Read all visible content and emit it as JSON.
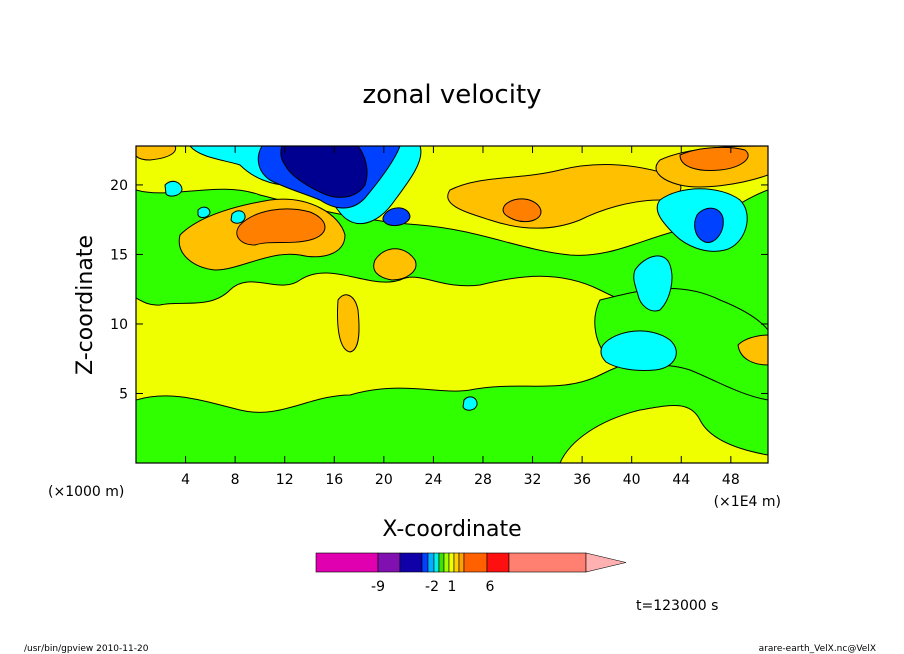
{
  "chart_data": {
    "type": "heatmap",
    "title": "zonal velocity",
    "xlabel": "X-coordinate",
    "ylabel": "Z-coordinate",
    "x_units_left": "(×1000 m)",
    "x_units_right": "(×1E4 m)",
    "x_ticks": [
      "4",
      "8",
      "12",
      "16",
      "20",
      "24",
      "28",
      "32",
      "36",
      "40",
      "44",
      "48"
    ],
    "x_tick_values": [
      4,
      8,
      12,
      16,
      20,
      24,
      28,
      32,
      36,
      40,
      44,
      48
    ],
    "y_ticks": [
      "5",
      "10",
      "15",
      "20"
    ],
    "y_tick_values": [
      5,
      10,
      15,
      20
    ],
    "xlim": [
      0,
      51
    ],
    "ylim": [
      0,
      22.8
    ],
    "time_label": "t=123000 s",
    "colorbar": {
      "tick_labels": [
        "-9",
        "-2",
        "1",
        "6"
      ],
      "colors": [
        "#e000b0",
        "#8010b0",
        "#1000a8",
        "#0040ff",
        "#00b0ff",
        "#00f0f0",
        "#40e000",
        "#a0ff00",
        "#f0ff00",
        "#ffd000",
        "#ffa000",
        "#ff6000",
        "#ff1010",
        "#ff8070",
        "#ffb0b0"
      ]
    },
    "field_colors": {
      "weak_positive": "#f0ff00",
      "weak_negative": "#30ff00",
      "moderate_positive": "#ffc000",
      "strong_positive": "#ff8000",
      "moderate_negative": "#00ffff",
      "strong_negative": "#0040ff",
      "extreme_negative": "#000090"
    }
  },
  "footer": {
    "program": "/usr/bin/gpview   2010-11-20",
    "source": "arare-earth_VelX.nc@VelX"
  }
}
